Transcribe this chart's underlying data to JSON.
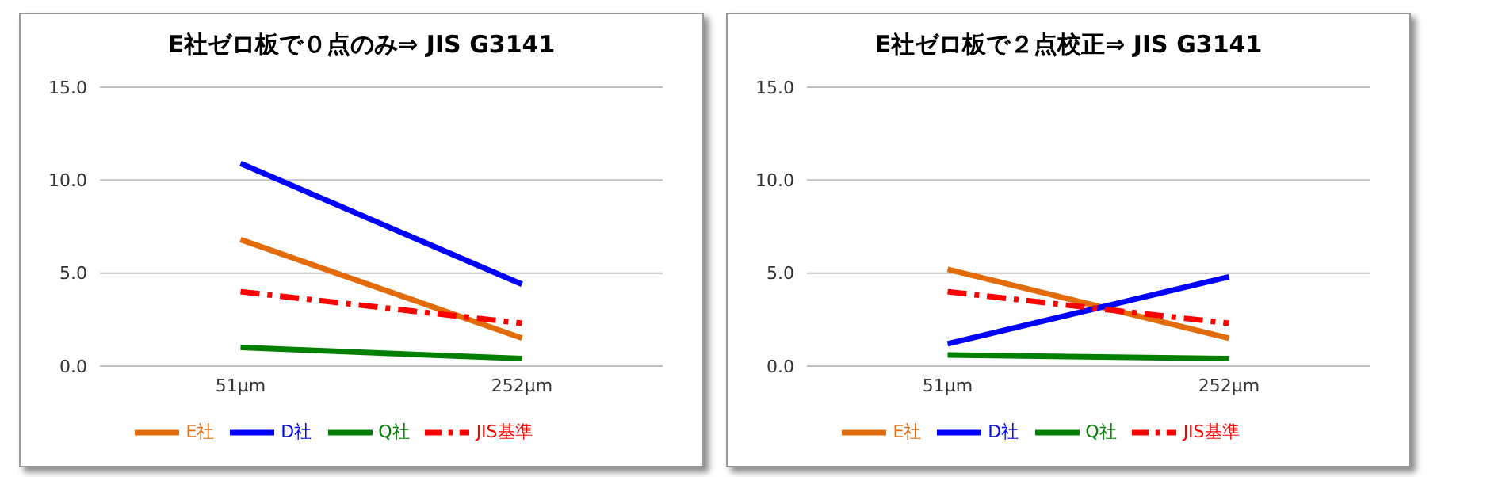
{
  "chart_data": [
    {
      "type": "line",
      "title": "E社ゼロ板で０点のみ⇒ JIS G3141",
      "categories": [
        "51μm",
        "252μm"
      ],
      "ylim": [
        0,
        15
      ],
      "yticks": [
        {
          "value": 0,
          "label": "0.0"
        },
        {
          "value": 5,
          "label": "5.0"
        },
        {
          "value": 10,
          "label": "10.0"
        },
        {
          "value": 15,
          "label": "15.0"
        }
      ],
      "grid": "y",
      "legend": "bottom",
      "marker": "none",
      "series": [
        {
          "name": "E社",
          "color": "#e36c0a",
          "values": [
            6.8,
            1.5
          ]
        },
        {
          "name": "D社",
          "color": "#0000ff",
          "values": [
            10.9,
            4.4
          ]
        },
        {
          "name": "Q社",
          "color": "#008000",
          "values": [
            1.0,
            0.4
          ]
        },
        {
          "name": "JIS基準",
          "color": "#ff0000",
          "values": [
            4.0,
            2.3
          ],
          "line_style": "dashed"
        }
      ]
    },
    {
      "type": "line",
      "title": "E社ゼロ板で２点校正⇒ JIS G3141",
      "categories": [
        "51μm",
        "252μm"
      ],
      "ylim": [
        0,
        15
      ],
      "yticks": [
        {
          "value": 0,
          "label": "0.0"
        },
        {
          "value": 5,
          "label": "5.0"
        },
        {
          "value": 10,
          "label": "10.0"
        },
        {
          "value": 15,
          "label": "15.0"
        }
      ],
      "grid": "y",
      "legend": "bottom",
      "marker": "none",
      "series": [
        {
          "name": "E社",
          "color": "#e36c0a",
          "values": [
            5.2,
            1.5
          ]
        },
        {
          "name": "D社",
          "color": "#0000ff",
          "values": [
            1.2,
            4.8
          ]
        },
        {
          "name": "Q社",
          "color": "#008000",
          "values": [
            0.6,
            0.4
          ]
        },
        {
          "name": "JIS基準",
          "color": "#ff0000",
          "values": [
            4.0,
            2.3
          ],
          "line_style": "dashed"
        }
      ]
    }
  ]
}
